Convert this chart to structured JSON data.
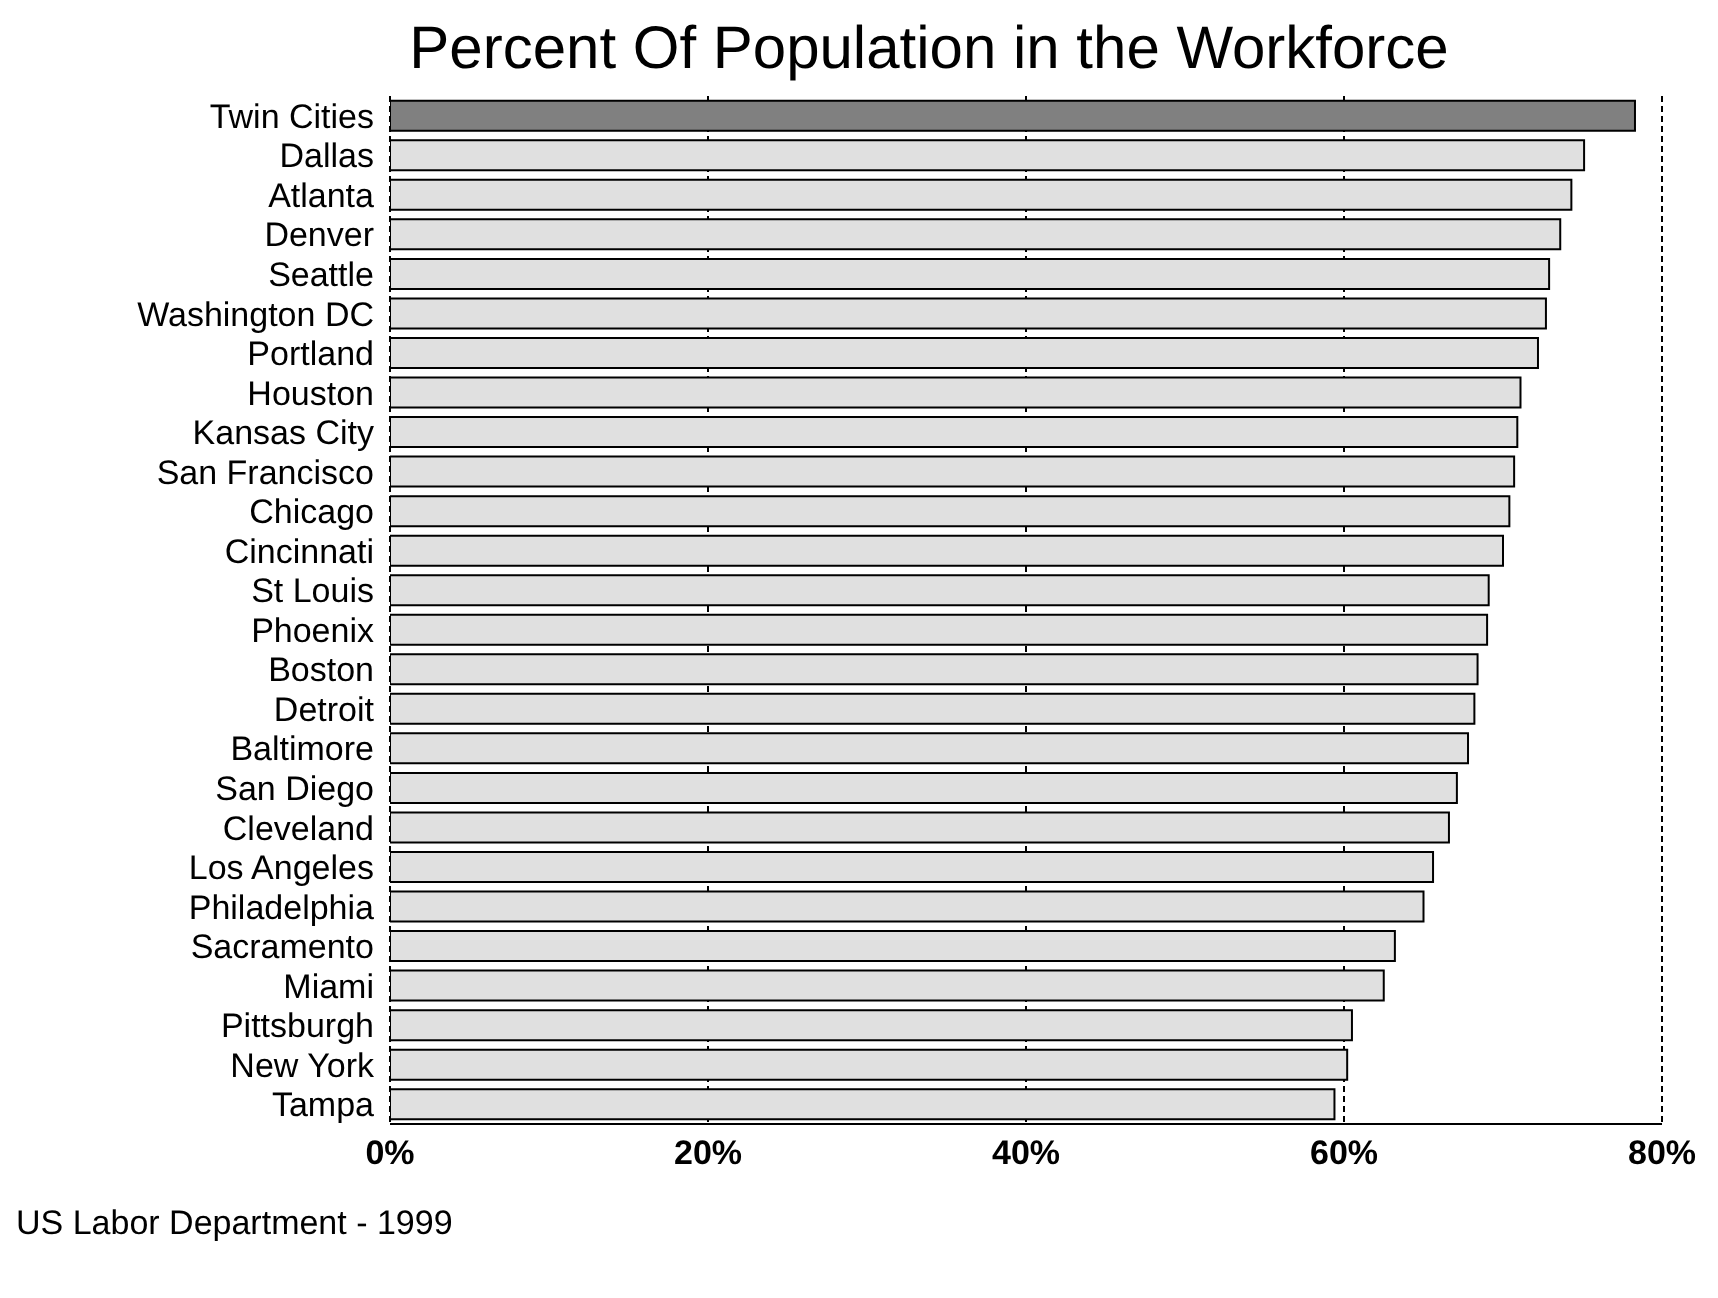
{
  "chart_data": {
    "type": "bar",
    "orientation": "horizontal",
    "title": "Percent Of Population in the Workforce",
    "categories": [
      "Twin Cities",
      "Dallas",
      "Atlanta",
      "Denver",
      "Seattle",
      "Washington DC",
      "Portland",
      "Houston",
      "Kansas City",
      "San Francisco",
      "Chicago",
      "Cincinnati",
      "St Louis",
      "Phoenix",
      "Boston",
      "Detroit",
      "Baltimore",
      "San Diego",
      "Cleveland",
      "Los Angeles",
      "Philadelphia",
      "Sacramento",
      "Miami",
      "Pittsburgh",
      "New York",
      "Tampa"
    ],
    "values": [
      78.3,
      75.1,
      74.3,
      73.6,
      72.9,
      72.7,
      72.2,
      71.1,
      70.9,
      70.7,
      70.4,
      70.0,
      69.1,
      69.0,
      68.4,
      68.2,
      67.8,
      67.1,
      66.6,
      65.6,
      65.0,
      63.2,
      62.5,
      60.5,
      60.2,
      59.4
    ],
    "colors": [
      "#808080",
      "#e0e0e0",
      "#e0e0e0",
      "#e0e0e0",
      "#e0e0e0",
      "#e0e0e0",
      "#e0e0e0",
      "#e0e0e0",
      "#e0e0e0",
      "#e0e0e0",
      "#e0e0e0",
      "#e0e0e0",
      "#e0e0e0",
      "#e0e0e0",
      "#e0e0e0",
      "#e0e0e0",
      "#e0e0e0",
      "#e0e0e0",
      "#e0e0e0",
      "#e0e0e0",
      "#e0e0e0",
      "#e0e0e0",
      "#e0e0e0",
      "#e0e0e0",
      "#e0e0e0",
      "#e0e0e0"
    ],
    "xlim": [
      0,
      80
    ],
    "xticks": [
      {
        "value": 0,
        "label": "0%"
      },
      {
        "value": 20,
        "label": "20%"
      },
      {
        "value": 40,
        "label": "40%"
      },
      {
        "value": 60,
        "label": "60%"
      },
      {
        "value": 80,
        "label": "80%"
      }
    ],
    "grid": "x",
    "annotations": [
      "US Labor Department - 1999"
    ]
  }
}
